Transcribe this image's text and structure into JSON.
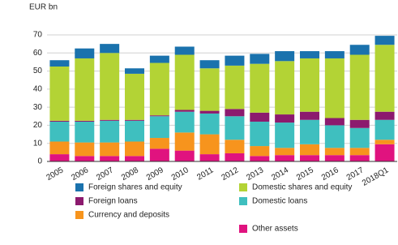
{
  "chart_data": {
    "type": "stacked_bar",
    "y_axis_label": "EUR bn",
    "categories": [
      "2005",
      "2006",
      "2007",
      "2008",
      "2009",
      "2010",
      "2011",
      "2012",
      "2013",
      "2014",
      "2015",
      "2016",
      "2017",
      "2018Q1"
    ],
    "series": [
      {
        "name": "Other assets",
        "color": "#e0137f",
        "values": [
          4,
          3,
          3,
          3,
          7,
          6,
          4,
          4.5,
          3,
          3.5,
          3.5,
          3.5,
          3.5,
          9.5
        ]
      },
      {
        "name": "Currency and deposits",
        "color": "#f7941d",
        "values": [
          7,
          7.5,
          7.5,
          8,
          6,
          10,
          11,
          7.5,
          5.5,
          4,
          6,
          4,
          4,
          2.5
        ]
      },
      {
        "name": "Domestic loans",
        "color": "#3fbfbf",
        "values": [
          11,
          11.5,
          12,
          11.5,
          12,
          11.5,
          11.5,
          13,
          13.5,
          14,
          13.5,
          12.5,
          11,
          11
        ]
      },
      {
        "name": "Foreign loans",
        "color": "#8c1a6e",
        "values": [
          0.5,
          0.5,
          0.5,
          0.5,
          0.5,
          1,
          1.5,
          4,
          5,
          4.5,
          4.5,
          4,
          4.5,
          4.5
        ]
      },
      {
        "name": "Domestic shares and equity",
        "color": "#b3d335",
        "values": [
          30,
          34.5,
          37,
          25.5,
          29,
          30.5,
          23.5,
          24,
          27,
          29.5,
          29.5,
          33,
          36,
          37
        ]
      },
      {
        "name": "Foreign shares and equity",
        "color": "#1a72ad",
        "values": [
          3.5,
          5.5,
          5,
          3,
          4,
          4.5,
          4.5,
          5.5,
          5.5,
          5.5,
          4,
          4,
          5.5,
          5
        ]
      }
    ],
    "ylim": [
      0,
      70
    ],
    "yticks": [
      0,
      10,
      20,
      30,
      40,
      50,
      60,
      70
    ],
    "grid": true
  }
}
